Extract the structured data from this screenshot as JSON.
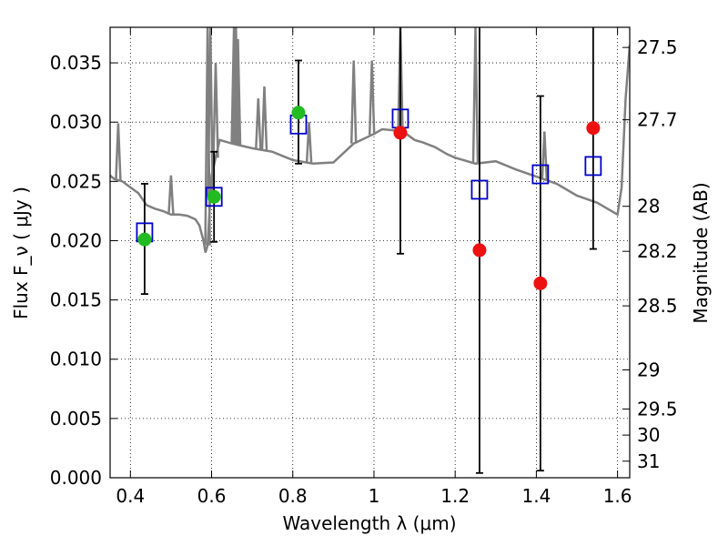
{
  "chart_data": {
    "type": "scatter",
    "xlabel": "Wavelength  λ (μm)",
    "ylabel": "Flux  F_ν  ( μJy )",
    "y2label": "Magnitude (AB)",
    "xlim": [
      0.35,
      1.63
    ],
    "ylim": [
      0.0,
      0.038
    ],
    "grid": true,
    "x_ticks": [
      0.4,
      0.6,
      0.8,
      1.0,
      1.2,
      1.4,
      1.6
    ],
    "x_tick_labels": [
      "0.4",
      "0.6",
      "0.8",
      "1",
      "1.2",
      "1.4",
      "1.6"
    ],
    "y_ticks": [
      0.0,
      0.005,
      0.01,
      0.015,
      0.02,
      0.025,
      0.03,
      0.035
    ],
    "y_tick_labels": [
      "0.000",
      "0.005",
      "0.010",
      "0.015",
      "0.020",
      "0.025",
      "0.030",
      "0.035"
    ],
    "y2_ticks": [
      {
        "label": "27.5",
        "flux": 0.0363
      },
      {
        "label": "27.7",
        "flux": 0.0302
      },
      {
        "label": "28",
        "flux": 0.0229
      },
      {
        "label": "28.2",
        "flux": 0.0191
      },
      {
        "label": "28.5",
        "flux": 0.0145
      },
      {
        "label": "29",
        "flux": 0.0091
      },
      {
        "label": "29.5",
        "flux": 0.0058
      },
      {
        "label": "30",
        "flux": 0.0036
      },
      {
        "label": "31",
        "flux": 0.0014
      }
    ],
    "colors": {
      "model": "#808080",
      "model_photometry": "#0000cc",
      "detection": "#22bb22",
      "non_detection": "#ee1111",
      "errorbar": "#000000"
    },
    "series": [
      {
        "kind": "model_spectrum",
        "x": [
          0.35,
          0.36,
          0.37,
          0.38,
          0.4,
          0.42,
          0.44,
          0.46,
          0.48,
          0.5,
          0.52,
          0.54,
          0.56,
          0.57,
          0.58,
          0.585,
          0.59,
          0.6,
          0.62,
          0.65,
          0.7,
          0.75,
          0.8,
          0.85,
          0.9,
          0.95,
          1.0,
          1.02,
          1.05,
          1.08,
          1.1,
          1.12,
          1.15,
          1.18,
          1.2,
          1.25,
          1.3,
          1.35,
          1.4,
          1.45,
          1.5,
          1.55,
          1.6,
          1.61,
          1.62,
          1.63
        ],
        "y": [
          0.0255,
          0.0252,
          0.0251,
          0.025,
          0.0245,
          0.024,
          0.023,
          0.0227,
          0.0225,
          0.0222,
          0.0222,
          0.0221,
          0.0218,
          0.0213,
          0.02,
          0.019,
          0.0196,
          0.0255,
          0.0285,
          0.0282,
          0.0278,
          0.0275,
          0.0268,
          0.0265,
          0.0266,
          0.0282,
          0.029,
          0.0294,
          0.0293,
          0.029,
          0.0285,
          0.0283,
          0.0279,
          0.0273,
          0.027,
          0.0265,
          0.0267,
          0.026,
          0.0254,
          0.0248,
          0.0238,
          0.0232,
          0.0222,
          0.0245,
          0.032,
          0.0365
        ]
      },
      {
        "kind": "model_photometry",
        "x": [
          0.435,
          0.606,
          0.814,
          1.065,
          1.26,
          1.41,
          1.54
        ],
        "y": [
          0.0207,
          0.0237,
          0.0298,
          0.0303,
          0.0243,
          0.0256,
          0.0263
        ]
      },
      {
        "kind": "detection",
        "x": [
          0.435,
          0.606,
          0.814
        ],
        "y": [
          0.0201,
          0.0237,
          0.0308
        ],
        "yerr_low": [
          0.0155,
          0.0199,
          0.0265
        ],
        "yerr_high": [
          0.0248,
          0.0275,
          0.0352
        ]
      },
      {
        "kind": "non_detection",
        "x": [
          1.065,
          1.26,
          1.41,
          1.54
        ],
        "y": [
          0.0291,
          0.0192,
          0.0164,
          0.0295
        ],
        "yerr_low": [
          0.0189,
          0.0004,
          0.0006,
          0.0193
        ],
        "yerr_high": [
          0.038,
          0.038,
          0.0322,
          0.038
        ]
      }
    ],
    "emission_spikes": [
      {
        "x": 0.37,
        "top": 0.0299
      },
      {
        "x": 0.5,
        "top": 0.0255
      },
      {
        "x": 0.59,
        "top": 0.038
      },
      {
        "x": 0.597,
        "top": 0.038
      },
      {
        "x": 0.61,
        "top": 0.035
      },
      {
        "x": 0.655,
        "top": 0.038
      },
      {
        "x": 0.66,
        "top": 0.038
      },
      {
        "x": 0.665,
        "top": 0.037
      },
      {
        "x": 0.715,
        "top": 0.032
      },
      {
        "x": 0.73,
        "top": 0.033
      },
      {
        "x": 0.84,
        "top": 0.03
      },
      {
        "x": 0.95,
        "top": 0.0352
      },
      {
        "x": 0.995,
        "top": 0.0352
      },
      {
        "x": 1.065,
        "top": 0.038
      },
      {
        "x": 1.25,
        "top": 0.038
      },
      {
        "x": 1.42,
        "top": 0.0292
      }
    ]
  }
}
